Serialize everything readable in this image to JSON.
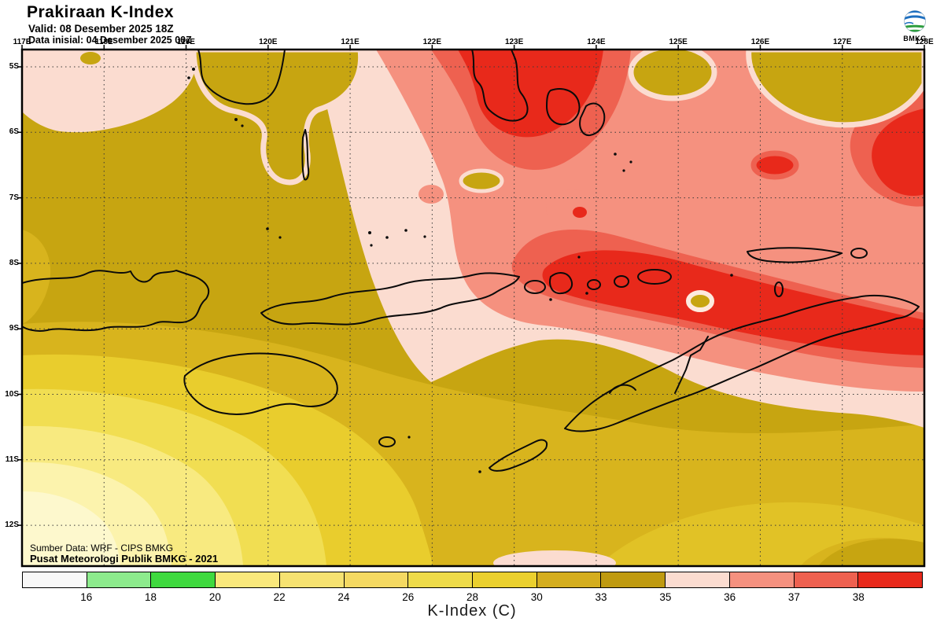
{
  "header": {
    "title": "Prakiraan K-Index",
    "valid": "Valid: 08 Desember 2025 18Z",
    "init": "Data inisial: 04 Desember 2025 00Z"
  },
  "logo": {
    "label": "BMKG"
  },
  "axes": {
    "lon_labels": [
      "117E",
      "118E",
      "119E",
      "120E",
      "121E",
      "122E",
      "123E",
      "124E",
      "125E",
      "126E",
      "127E",
      "128E"
    ],
    "lat_labels": [
      "5S",
      "6S",
      "7S",
      "8S",
      "9S",
      "10S",
      "11S",
      "12S"
    ]
  },
  "credits": {
    "line1": "Sumber Data: WRF - CIPS BMKG",
    "line2": "Pusat Meteorologi Publik BMKG -  2021"
  },
  "colorbar": {
    "title": "K-Index (C)",
    "tick_labels": [
      "16",
      "18",
      "20",
      "22",
      "24",
      "26",
      "28",
      "30",
      "33",
      "35",
      "36",
      "37",
      "38"
    ],
    "cell_colors": [
      "#f8f8f8",
      "#8deb8d",
      "#3fd93f",
      "#f9e87c",
      "#f6e271",
      "#f4d962",
      "#eedb4a",
      "#ebd02e",
      "#d4ad1e",
      "#bf9a10",
      "#fbdcd0",
      "#f5917f",
      "#ee6150",
      "#e8291b"
    ]
  },
  "map_legend_bands": [
    {
      "range": "<16",
      "color": "#f8f8f8"
    },
    {
      "range": "16-18",
      "color": "#8deb8d"
    },
    {
      "range": "18-20",
      "color": "#3fd93f"
    },
    {
      "range": "20-22",
      "color": "#f9e87c"
    },
    {
      "range": "22-24",
      "color": "#f6e271"
    },
    {
      "range": "24-26",
      "color": "#f4d962"
    },
    {
      "range": "26-28",
      "color": "#eedb4a"
    },
    {
      "range": "28-30",
      "color": "#ebd02e"
    },
    {
      "range": "30-33",
      "color": "#d4ad1e"
    },
    {
      "range": "33-35",
      "color": "#bf9a10"
    },
    {
      "range": "35-36",
      "color": "#fbdcd0"
    },
    {
      "range": "36-37",
      "color": "#f5917f"
    },
    {
      "range": "37-38",
      "color": "#ee6150"
    },
    {
      "range": ">38",
      "color": "#e8291b"
    }
  ]
}
